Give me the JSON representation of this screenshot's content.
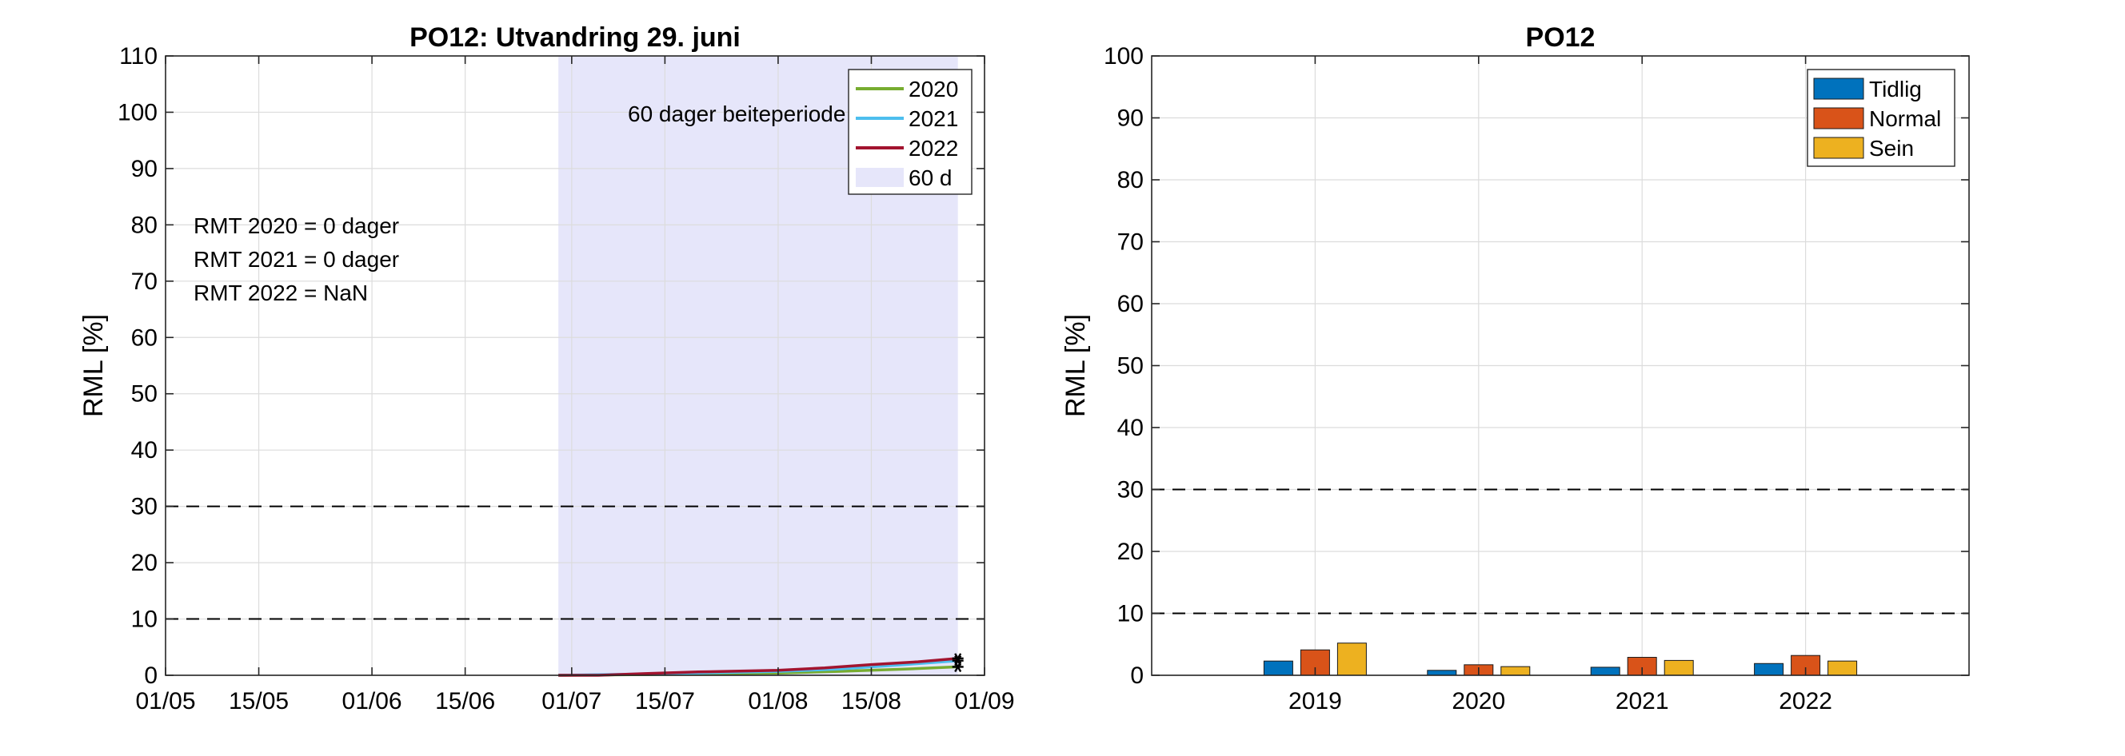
{
  "chart_data": [
    {
      "type": "line",
      "title": "PO12: Utvandring 29. juni",
      "xlabel": "",
      "ylabel": "RML [%]",
      "xlim": [
        "2020-05-01",
        "2020-09-01"
      ],
      "ylim": [
        0,
        110
      ],
      "xticks": [
        {
          "date": "2020-05-01",
          "label": "01/05"
        },
        {
          "date": "2020-05-15",
          "label": "15/05"
        },
        {
          "date": "2020-06-01",
          "label": "01/06"
        },
        {
          "date": "2020-06-15",
          "label": "15/06"
        },
        {
          "date": "2020-07-01",
          "label": "01/07"
        },
        {
          "date": "2020-07-15",
          "label": "15/07"
        },
        {
          "date": "2020-08-01",
          "label": "01/08"
        },
        {
          "date": "2020-08-15",
          "label": "15/08"
        },
        {
          "date": "2020-09-01",
          "label": "01/09"
        }
      ],
      "yticks": [
        0,
        10,
        20,
        30,
        40,
        50,
        60,
        70,
        80,
        90,
        100,
        110
      ],
      "grid": true,
      "legend_location": "top-right",
      "shaded_period": {
        "start": "2020-06-29",
        "end": "2020-08-28",
        "label": "60 d",
        "color": "#e6e6fa"
      },
      "period_label": "60 dager beiteperiode",
      "threshold_lines": [
        10,
        30
      ],
      "annotations": [
        "RMT 2020 = 0 dager",
        "RMT 2021 = 0 dager",
        "RMT 2022 = NaN"
      ],
      "series": [
        {
          "name": "2020",
          "color": "#77ac30",
          "x": [
            "2020-06-29",
            "2020-07-10",
            "2020-07-20",
            "2020-08-01",
            "2020-08-10",
            "2020-08-20",
            "2020-08-28"
          ],
          "y": [
            0,
            0.1,
            0.2,
            0.4,
            0.7,
            1.1,
            1.5
          ]
        },
        {
          "name": "2021",
          "color": "#4dbeee",
          "x": [
            "2020-06-29",
            "2020-07-10",
            "2020-07-20",
            "2020-08-01",
            "2020-08-10",
            "2020-08-20",
            "2020-08-28"
          ],
          "y": [
            0,
            0.2,
            0.4,
            0.7,
            1.1,
            1.9,
            2.6
          ]
        },
        {
          "name": "2022",
          "color": "#a2142f",
          "x": [
            "2020-06-29",
            "2020-07-05",
            "2020-07-12",
            "2020-07-20",
            "2020-08-01",
            "2020-08-08",
            "2020-08-15",
            "2020-08-22",
            "2020-08-28"
          ],
          "y": [
            0,
            0,
            0.3,
            0.6,
            0.9,
            1.3,
            1.9,
            2.4,
            3.0
          ]
        }
      ],
      "end_markers": [
        {
          "date": "2020-08-28",
          "value": 1.5
        },
        {
          "date": "2020-08-28",
          "value": 2.6
        },
        {
          "date": "2020-08-28",
          "value": 3.0
        }
      ]
    },
    {
      "type": "bar",
      "title": "PO12",
      "xlabel": "",
      "ylabel": "RML [%]",
      "ylim": [
        0,
        100
      ],
      "yticks": [
        0,
        10,
        20,
        30,
        40,
        50,
        60,
        70,
        80,
        90,
        100
      ],
      "grid": true,
      "legend_location": "top-right",
      "threshold_lines": [
        10,
        30
      ],
      "categories": [
        "2019",
        "2020",
        "2021",
        "2022"
      ],
      "series": [
        {
          "name": "Tidlig",
          "color": "#0072bd",
          "values": [
            2.3,
            0.8,
            1.3,
            1.9
          ]
        },
        {
          "name": "Normal",
          "color": "#d95319",
          "values": [
            4.1,
            1.7,
            2.9,
            3.2
          ]
        },
        {
          "name": "Sein",
          "color": "#edb120",
          "values": [
            5.2,
            1.4,
            2.4,
            2.3
          ]
        }
      ]
    }
  ]
}
